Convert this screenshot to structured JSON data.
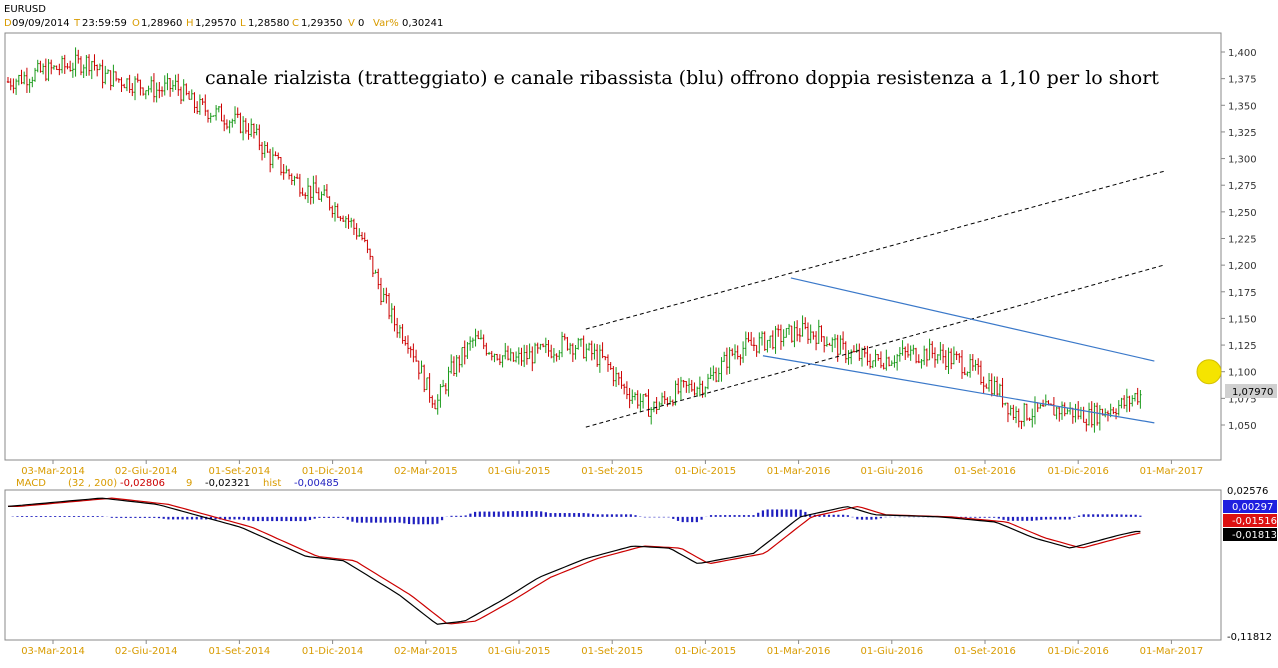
{
  "header": {
    "symbol": "EURUSD",
    "date_label": "D",
    "date": "09/09/2014",
    "time_label": "T",
    "time": "23:59:59",
    "open_label": "O",
    "open": "1,28960",
    "high_label": "H",
    "high": "1,29570",
    "low_label": "L",
    "low": "1,28580",
    "close_label": "C",
    "close": "1,29350",
    "vol_label": "V",
    "vol": "0",
    "var_label": "Var%",
    "var": "0,30241"
  },
  "annotation": "canale rialzista (tratteggiato) e canale ribassista (blu) offrono doppia resistenza a 1,10 per lo short",
  "price_panel": {
    "y_ticks": [
      "1,400",
      "1,375",
      "1,350",
      "1,325",
      "1,300",
      "1,275",
      "1,250",
      "1,225",
      "1,200",
      "1,175",
      "1,150",
      "1,125",
      "1,100",
      "1,075",
      "1,050"
    ],
    "last_price": "1,07970"
  },
  "macd_panel": {
    "label": "MACD",
    "params": "(32 , 200)",
    "macd_value": "-0,02806",
    "signal_label": "9",
    "signal_value": "-0,02321",
    "hist_label": "hist",
    "hist_value": "-0,00485",
    "y_top": "0,02576",
    "y_bottom": "-0,11812",
    "box_hist": "0,00297",
    "box_red": "-0,01516",
    "box_black": "-0,01813"
  },
  "x_labels": [
    "03-Mar-2014",
    "02-Giu-2014",
    "01-Set-2014",
    "01-Dic-2014",
    "02-Mar-2015",
    "01-Giu-2015",
    "01-Set-2015",
    "01-Dic-2015",
    "01-Mar-2016",
    "01-Giu-2016",
    "01-Set-2016",
    "01-Dic-2016",
    "01-Mar-2017"
  ],
  "colors": {
    "up": "#1a9a1a",
    "down": "#cc0000",
    "channel_down": "#3a78c9",
    "channel_up": "#000000",
    "macd": "#000000",
    "signal": "#cc0000",
    "hist": "#1f1fbf",
    "marker": "#f5e400",
    "axis_text": "#d89b00"
  },
  "chart_data": {
    "type": "candlestick",
    "ylim": [
      1.025,
      1.41
    ],
    "x": [
      "03-Mar-2014",
      "02-Giu-2014",
      "01-Set-2014",
      "01-Dic-2014",
      "02-Mar-2015",
      "01-Giu-2015",
      "01-Set-2015",
      "01-Dic-2015",
      "01-Mar-2016",
      "01-Giu-2016",
      "01-Set-2016",
      "01-Dic-2016",
      "01-Mar-2017"
    ],
    "close_path": [
      [
        0,
        1.372
      ],
      [
        0.3,
        1.38
      ],
      [
        0.6,
        1.386
      ],
      [
        0.9,
        1.392
      ],
      [
        1.0,
        1.378
      ],
      [
        1.3,
        1.372
      ],
      [
        1.6,
        1.364
      ],
      [
        1.8,
        1.368
      ],
      [
        2.0,
        1.35
      ],
      [
        2.3,
        1.34
      ],
      [
        2.6,
        1.328
      ],
      [
        2.8,
        1.302
      ],
      [
        3.0,
        1.286
      ],
      [
        3.2,
        1.272
      ],
      [
        3.4,
        1.262
      ],
      [
        3.6,
        1.248
      ],
      [
        3.8,
        1.225
      ],
      [
        4.0,
        1.175
      ],
      [
        4.15,
        1.145
      ],
      [
        4.3,
        1.13
      ],
      [
        4.5,
        1.084
      ],
      [
        4.6,
        1.07
      ],
      [
        4.75,
        1.1
      ],
      [
        5.0,
        1.13
      ],
      [
        5.4,
        1.11
      ],
      [
        5.8,
        1.12
      ],
      [
        6.0,
        1.128
      ],
      [
        6.2,
        1.12
      ],
      [
        6.4,
        1.11
      ],
      [
        6.6,
        1.085
      ],
      [
        6.9,
        1.065
      ],
      [
        7.2,
        1.082
      ],
      [
        7.5,
        1.09
      ],
      [
        7.8,
        1.12
      ],
      [
        8.1,
        1.128
      ],
      [
        8.5,
        1.138
      ],
      [
        8.7,
        1.135
      ],
      [
        9.0,
        1.118
      ],
      [
        9.3,
        1.11
      ],
      [
        9.6,
        1.116
      ],
      [
        9.9,
        1.118
      ],
      [
        10.2,
        1.11
      ],
      [
        10.4,
        1.098
      ],
      [
        10.6,
        1.085
      ],
      [
        10.8,
        1.06
      ],
      [
        11.0,
        1.062
      ],
      [
        11.3,
        1.065
      ],
      [
        11.6,
        1.058
      ],
      [
        11.9,
        1.068
      ],
      [
        12.0,
        1.07
      ],
      [
        12.1,
        1.078
      ]
    ],
    "channel_dashed": [
      {
        "x": [
          6.2,
          12.4
        ],
        "y": [
          1.048,
          1.2
        ]
      },
      {
        "x": [
          6.2,
          12.4
        ],
        "y": [
          1.14,
          1.288
        ]
      }
    ],
    "channel_blue": [
      {
        "x": [
          8.4,
          12.3
        ],
        "y": [
          1.188,
          1.11
        ]
      },
      {
        "x": [
          8.1,
          12.3
        ],
        "y": [
          1.115,
          1.052
        ]
      }
    ],
    "target_level": 1.1
  }
}
